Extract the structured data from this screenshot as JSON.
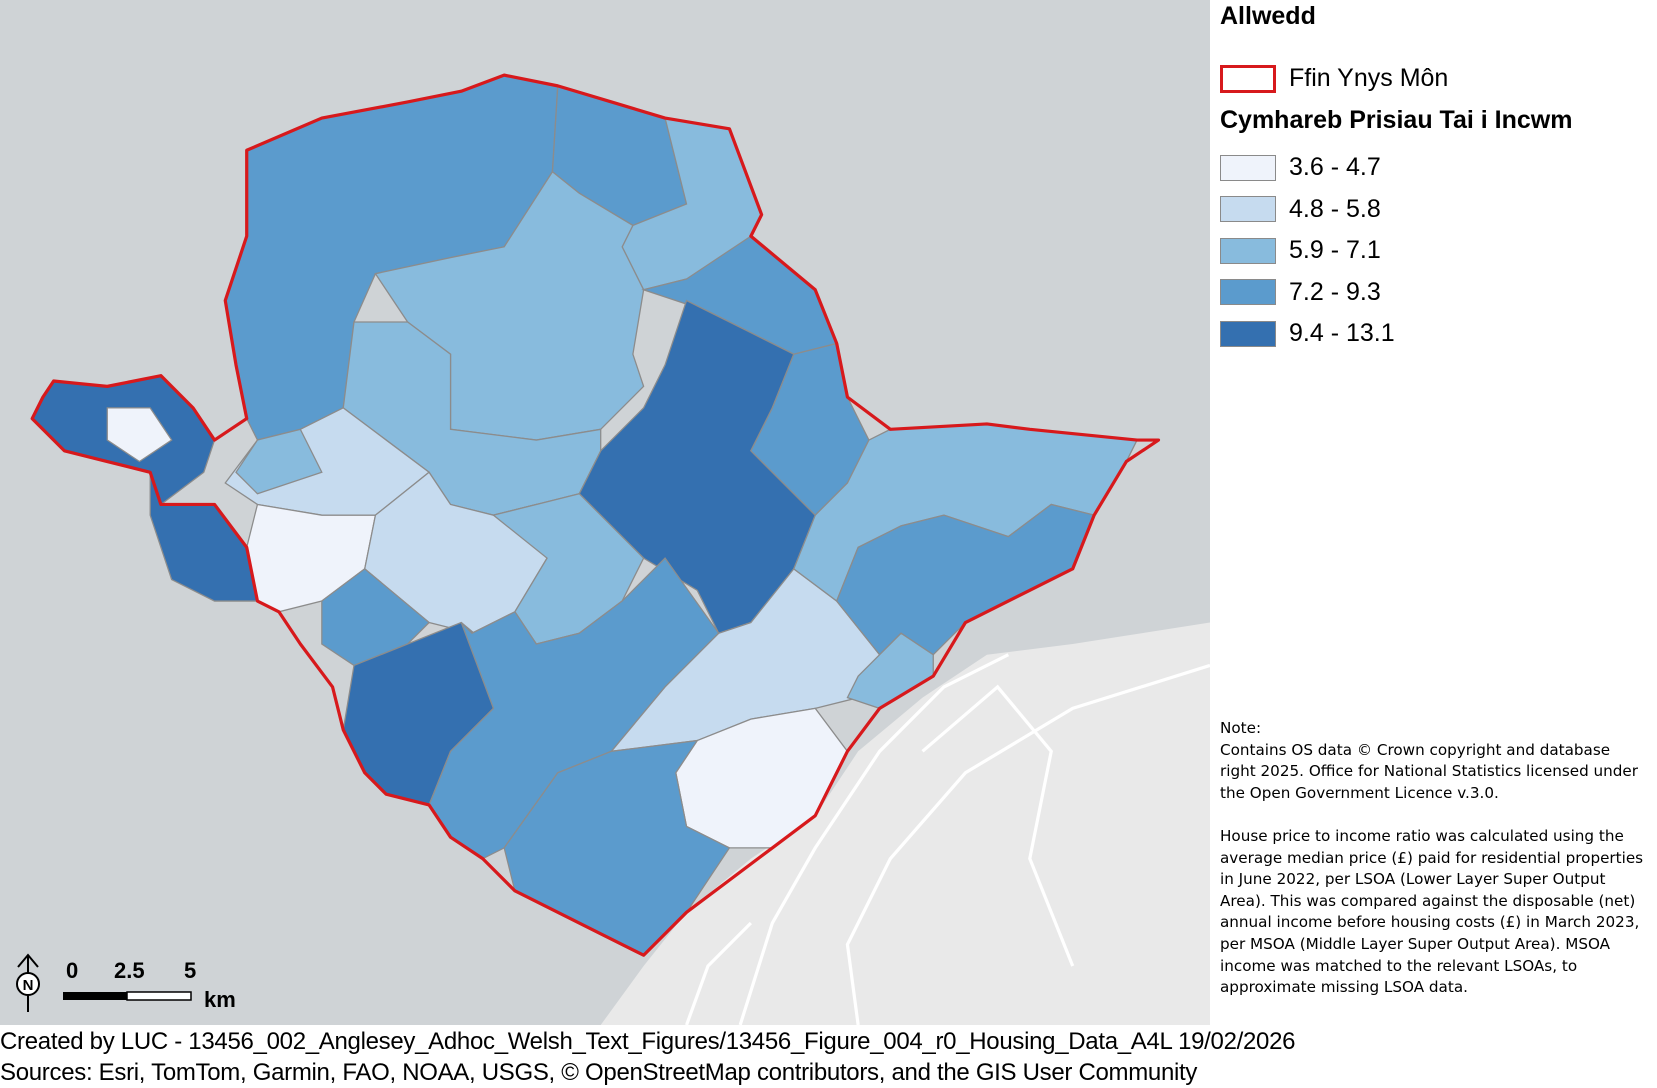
{
  "legend": {
    "title": "Allwedd",
    "boundary_label": "Ffin Ynys Môn",
    "ratio_heading": "Cymhareb Prisiau Tai i Incwm",
    "classes": [
      {
        "label": "3.6 - 4.7",
        "color": "#eff3fb"
      },
      {
        "label": "4.8 - 5.8",
        "color": "#c6dbef"
      },
      {
        "label": "5.9 - 7.1",
        "color": "#88bbdd"
      },
      {
        "label": "7.2 - 9.3",
        "color": "#5b9bcd"
      },
      {
        "label": "9.4 - 13.1",
        "color": "#3470b0"
      }
    ],
    "boundary_color": "#d7191c"
  },
  "note": {
    "heading": "Note:",
    "paragraph1": "Contains OS data © Crown copyright and database right 2025. Office for National Statistics licensed under the Open Government Licence v.3.0.",
    "paragraph2": "House price to income ratio was calculated using the average median price (£) paid for residential properties in June 2022, per LSOA (Lower Layer Super Output Area). This was compared against the disposable (net) annual income before housing costs (£) in March 2023, per MSOA (Middle Layer Super Output Area). MSOA income was matched to the relevant LSOAs, to approximate missing LSOA data."
  },
  "scale_bar": {
    "ticks": [
      "0",
      "2.5",
      "5"
    ],
    "unit": "km",
    "north_label": "N"
  },
  "footer": {
    "created_by": "Created by LUC - 13456_002_Anglesey_Adhoc_Welsh_Text_Figures/13456_Figure_004_r0_Housing_Data_A4L 19/02/2026",
    "sources": "Sources: Esri, TomTom, Garmin, FAO, NOAA, USGS, © OpenStreetMap contributors, and the GIS User Community"
  }
}
